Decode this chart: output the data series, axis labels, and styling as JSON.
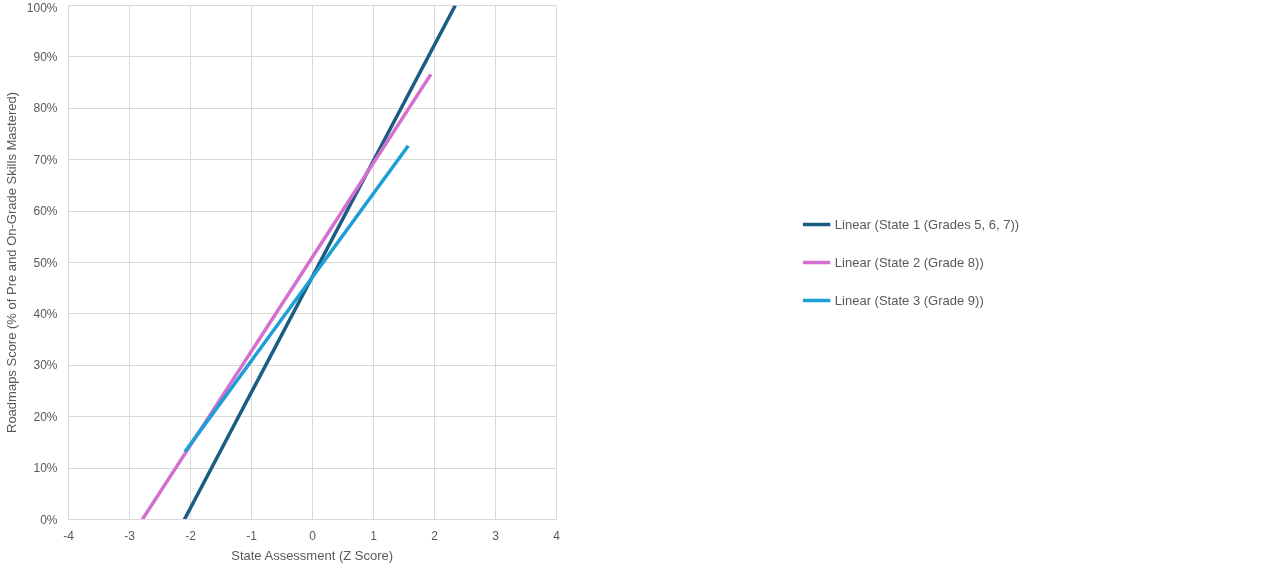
{
  "chart_data": {
    "type": "line",
    "xlabel": "State Assessment (Z Score)",
    "ylabel": "Roadmaps Score (% of Pre and On-Grade Skills Mastered)",
    "series": [
      {
        "name": "Linear (State 1 (Grades 5, 6, 7))",
        "color": "#1b5c82",
        "x": [
          -2.1,
          2.34
        ],
        "values": [
          0,
          100
        ]
      },
      {
        "name": "Linear (State 2 (Grade 8))",
        "color": "#d46fd0",
        "x": [
          -2.79,
          1.94
        ],
        "values": [
          0,
          86.6
        ]
      },
      {
        "name": "Linear (State 3 (Grade 9))",
        "color": "#1d9fd6",
        "x": [
          -2.09,
          1.57
        ],
        "values": [
          13.2,
          72.7
        ]
      }
    ],
    "xlim": [
      -4,
      4
    ],
    "xticks": [
      -4,
      -3,
      -2,
      -1,
      0,
      1,
      2,
      3,
      4
    ],
    "ylim": [
      0,
      100
    ],
    "yticks": [
      {
        "value": 0,
        "label": "0%"
      },
      {
        "value": 10,
        "label": "10%"
      },
      {
        "value": 20,
        "label": "20%"
      },
      {
        "value": 30,
        "label": "30%"
      },
      {
        "value": 40,
        "label": "40%"
      },
      {
        "value": 50,
        "label": "50%"
      },
      {
        "value": 60,
        "label": "60%"
      },
      {
        "value": 70,
        "label": "70%"
      },
      {
        "value": 80,
        "label": "80%"
      },
      {
        "value": 90,
        "label": "90%"
      },
      {
        "value": 100,
        "label": "100%"
      }
    ],
    "grid": true,
    "legend": "right",
    "marker": "none",
    "line_style": "solid"
  }
}
